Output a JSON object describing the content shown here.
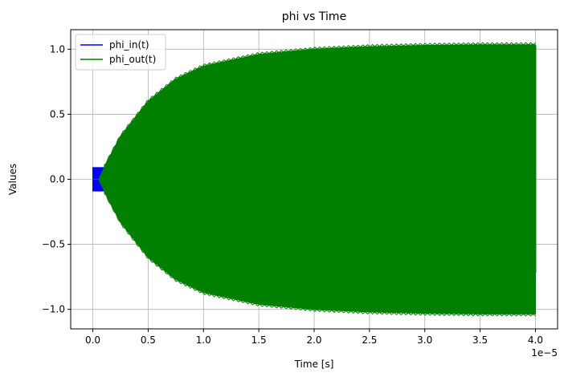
{
  "chart_data": {
    "type": "line",
    "title": "phi vs Time",
    "xlabel": "Time [s]",
    "ylabel": "Values",
    "x_offset_text": "1e−5",
    "xlim": [
      -2e-06,
      4.2e-05
    ],
    "ylim": [
      -1.15,
      1.15
    ],
    "x_ticks": [
      0,
      5e-06,
      1e-05,
      1.5e-05,
      2e-05,
      2.5e-05,
      3e-05,
      3.5e-05,
      4e-05
    ],
    "x_tick_labels": [
      "0.0",
      "0.5",
      "1.0",
      "1.5",
      "2.0",
      "2.5",
      "3.0",
      "3.5",
      "4.0"
    ],
    "y_ticks": [
      1.0,
      0.5,
      0.0,
      -0.5,
      -1.0
    ],
    "y_tick_labels": [
      "1.0",
      "0.5",
      "0.0",
      "−0.5",
      "−1.0"
    ],
    "grid": true,
    "legend_position": "top-left",
    "series": [
      {
        "name": "phi_in(t)",
        "color": "#0000ff",
        "x": [
          0,
          5e-07,
          1e-06
        ],
        "upper": [
          0.09,
          0.09,
          0.09
        ],
        "lower": [
          -0.09,
          -0.09,
          -0.09
        ]
      },
      {
        "name": "phi_out(t)",
        "color": "#008000",
        "x": [
          0,
          5e-07,
          1e-06,
          2.5e-06,
          5e-06,
          7.5e-06,
          1e-05,
          1.5e-05,
          2e-05,
          2.5e-05,
          3e-05,
          3.5e-05,
          4e-05
        ],
        "upper": [
          0.0,
          0.0,
          0.09,
          0.33,
          0.6,
          0.77,
          0.87,
          0.96,
          1.0,
          1.02,
          1.03,
          1.035,
          1.035
        ],
        "lower": [
          0.0,
          0.0,
          -0.09,
          -0.33,
          -0.6,
          -0.77,
          -0.87,
          -0.96,
          -1.0,
          -1.02,
          -1.03,
          -1.035,
          -1.035
        ]
      }
    ]
  }
}
